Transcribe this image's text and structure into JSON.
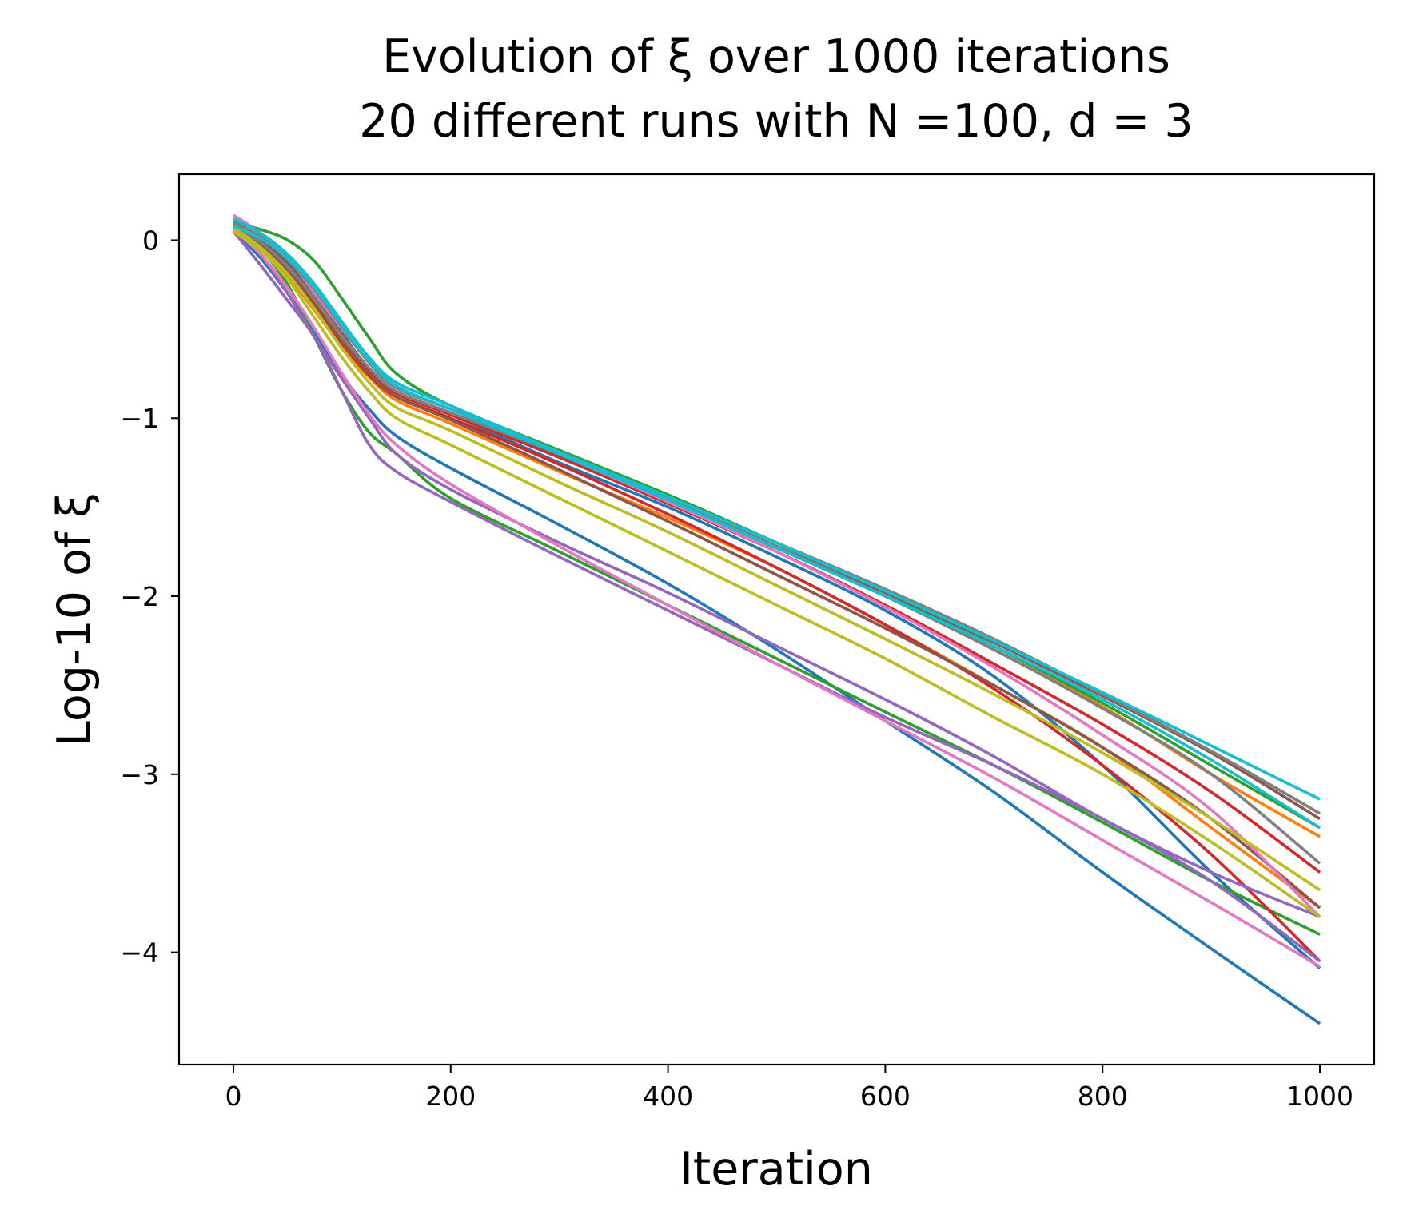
{
  "chart_data": {
    "type": "line",
    "title_line1": "Evolution of ξ over 1000 iterations",
    "title_line2": "20 different runs with N =100, d = 3",
    "xlabel": "Iteration",
    "ylabel": "Log-10 of ξ",
    "xlim": [
      -50,
      1050
    ],
    "ylim": [
      -4.63,
      0.37
    ],
    "x_ticks": [
      0,
      200,
      400,
      600,
      800,
      1000
    ],
    "x_tick_labels": [
      "0",
      "200",
      "400",
      "600",
      "800",
      "1000"
    ],
    "y_ticks": [
      0,
      -1,
      -2,
      -3,
      -4
    ],
    "y_tick_labels": [
      "0",
      "−1",
      "−2",
      "−3",
      "−4"
    ],
    "grid": false,
    "x": [
      0,
      25,
      50,
      75,
      100,
      125,
      150,
      200,
      300,
      400,
      500,
      600,
      700,
      800,
      900,
      1000
    ],
    "series": [
      {
        "color": "#1f77b4",
        "values": [
          0.05,
          -0.1,
          -0.3,
          -0.52,
          -0.76,
          -0.95,
          -1.1,
          -1.28,
          -1.6,
          -1.93,
          -2.3,
          -2.7,
          -3.1,
          -3.55,
          -3.98,
          -4.4
        ]
      },
      {
        "color": "#1f77b4",
        "values": [
          0.1,
          0.0,
          -0.13,
          -0.3,
          -0.52,
          -0.73,
          -0.86,
          -0.98,
          -1.25,
          -1.5,
          -1.78,
          -2.08,
          -2.45,
          -2.95,
          -3.55,
          -4.09
        ]
      },
      {
        "color": "#ff7f0e",
        "values": [
          0.08,
          -0.02,
          -0.15,
          -0.34,
          -0.55,
          -0.73,
          -0.86,
          -0.98,
          -1.22,
          -1.47,
          -1.73,
          -2.0,
          -2.3,
          -2.62,
          -3.0,
          -3.35
        ]
      },
      {
        "color": "#ff7f0e",
        "values": [
          0.06,
          -0.04,
          -0.2,
          -0.4,
          -0.6,
          -0.77,
          -0.9,
          -1.03,
          -1.3,
          -1.56,
          -1.84,
          -2.16,
          -2.5,
          -2.85,
          -3.3,
          -3.75
        ]
      },
      {
        "color": "#2ca02c",
        "values": [
          0.1,
          0.06,
          0.0,
          -0.12,
          -0.33,
          -0.55,
          -0.75,
          -0.93,
          -1.18,
          -1.43,
          -1.7,
          -1.98,
          -2.28,
          -2.6,
          -2.95,
          -3.3
        ]
      },
      {
        "color": "#2ca02c",
        "values": [
          0.07,
          -0.05,
          -0.25,
          -0.55,
          -0.85,
          -1.08,
          -1.2,
          -1.45,
          -1.75,
          -2.05,
          -2.35,
          -2.65,
          -2.95,
          -3.27,
          -3.6,
          -3.9
        ]
      },
      {
        "color": "#d62728",
        "values": [
          0.09,
          0.0,
          -0.14,
          -0.32,
          -0.54,
          -0.73,
          -0.86,
          -0.98,
          -1.22,
          -1.48,
          -1.75,
          -2.05,
          -2.38,
          -2.72,
          -3.1,
          -3.55
        ]
      },
      {
        "color": "#d62728",
        "values": [
          0.06,
          -0.04,
          -0.18,
          -0.37,
          -0.58,
          -0.76,
          -0.88,
          -1.0,
          -1.26,
          -1.54,
          -1.84,
          -2.16,
          -2.52,
          -2.95,
          -3.45,
          -4.05
        ]
      },
      {
        "color": "#9467bd",
        "values": [
          0.08,
          -0.08,
          -0.3,
          -0.55,
          -0.78,
          -1.0,
          -1.2,
          -1.4,
          -1.7,
          -1.98,
          -2.28,
          -2.58,
          -2.9,
          -3.25,
          -3.55,
          -3.8
        ]
      },
      {
        "color": "#9467bd",
        "values": [
          0.05,
          -0.14,
          -0.34,
          -0.55,
          -0.85,
          -1.15,
          -1.3,
          -1.47,
          -1.78,
          -2.08,
          -2.38,
          -2.68,
          -2.95,
          -3.25,
          -3.6,
          -4.05
        ]
      },
      {
        "color": "#8c564b",
        "values": [
          0.07,
          -0.03,
          -0.17,
          -0.36,
          -0.57,
          -0.75,
          -0.88,
          -1.01,
          -1.29,
          -1.58,
          -1.88,
          -2.18,
          -2.5,
          -2.85,
          -3.25,
          -3.75
        ]
      },
      {
        "color": "#8c564b",
        "values": [
          0.09,
          0.0,
          -0.14,
          -0.32,
          -0.53,
          -0.72,
          -0.85,
          -0.97,
          -1.21,
          -1.46,
          -1.72,
          -1.98,
          -2.26,
          -2.56,
          -2.88,
          -3.25
        ]
      },
      {
        "color": "#e377c2",
        "values": [
          0.14,
          0.04,
          -0.1,
          -0.3,
          -0.5,
          -0.68,
          -0.82,
          -0.95,
          -1.2,
          -1.47,
          -1.75,
          -2.06,
          -2.4,
          -2.78,
          -3.2,
          -3.8
        ]
      },
      {
        "color": "#e377c2",
        "values": [
          0.06,
          -0.08,
          -0.27,
          -0.5,
          -0.75,
          -0.98,
          -1.15,
          -1.37,
          -1.72,
          -2.05,
          -2.38,
          -2.7,
          -3.02,
          -3.37,
          -3.72,
          -4.08
        ]
      },
      {
        "color": "#7f7f7f",
        "values": [
          0.08,
          -0.01,
          -0.15,
          -0.33,
          -0.54,
          -0.72,
          -0.85,
          -0.97,
          -1.2,
          -1.46,
          -1.72,
          -2.0,
          -2.3,
          -2.63,
          -3.0,
          -3.5
        ]
      },
      {
        "color": "#7f7f7f",
        "values": [
          0.1,
          0.02,
          -0.11,
          -0.28,
          -0.49,
          -0.69,
          -0.83,
          -0.95,
          -1.19,
          -1.45,
          -1.7,
          -1.96,
          -2.24,
          -2.55,
          -2.87,
          -3.22
        ]
      },
      {
        "color": "#bcbd22",
        "values": [
          0.05,
          -0.06,
          -0.22,
          -0.44,
          -0.66,
          -0.85,
          -1.0,
          -1.15,
          -1.45,
          -1.75,
          -2.05,
          -2.35,
          -2.68,
          -3.0,
          -3.38,
          -3.8
        ]
      },
      {
        "color": "#bcbd22",
        "values": [
          0.07,
          -0.04,
          -0.19,
          -0.39,
          -0.61,
          -0.8,
          -0.94,
          -1.07,
          -1.36,
          -1.64,
          -1.94,
          -2.24,
          -2.55,
          -2.88,
          -3.25,
          -3.65
        ]
      },
      {
        "color": "#17becf",
        "values": [
          0.12,
          0.04,
          -0.08,
          -0.25,
          -0.46,
          -0.66,
          -0.8,
          -0.93,
          -1.19,
          -1.44,
          -1.7,
          -1.97,
          -2.25,
          -2.54,
          -2.84,
          -3.14
        ]
      },
      {
        "color": "#17becf",
        "values": [
          0.08,
          0.01,
          -0.1,
          -0.27,
          -0.48,
          -0.68,
          -0.82,
          -0.95,
          -1.2,
          -1.46,
          -1.73,
          -2.0,
          -2.28,
          -2.58,
          -2.92,
          -3.3
        ]
      }
    ]
  }
}
